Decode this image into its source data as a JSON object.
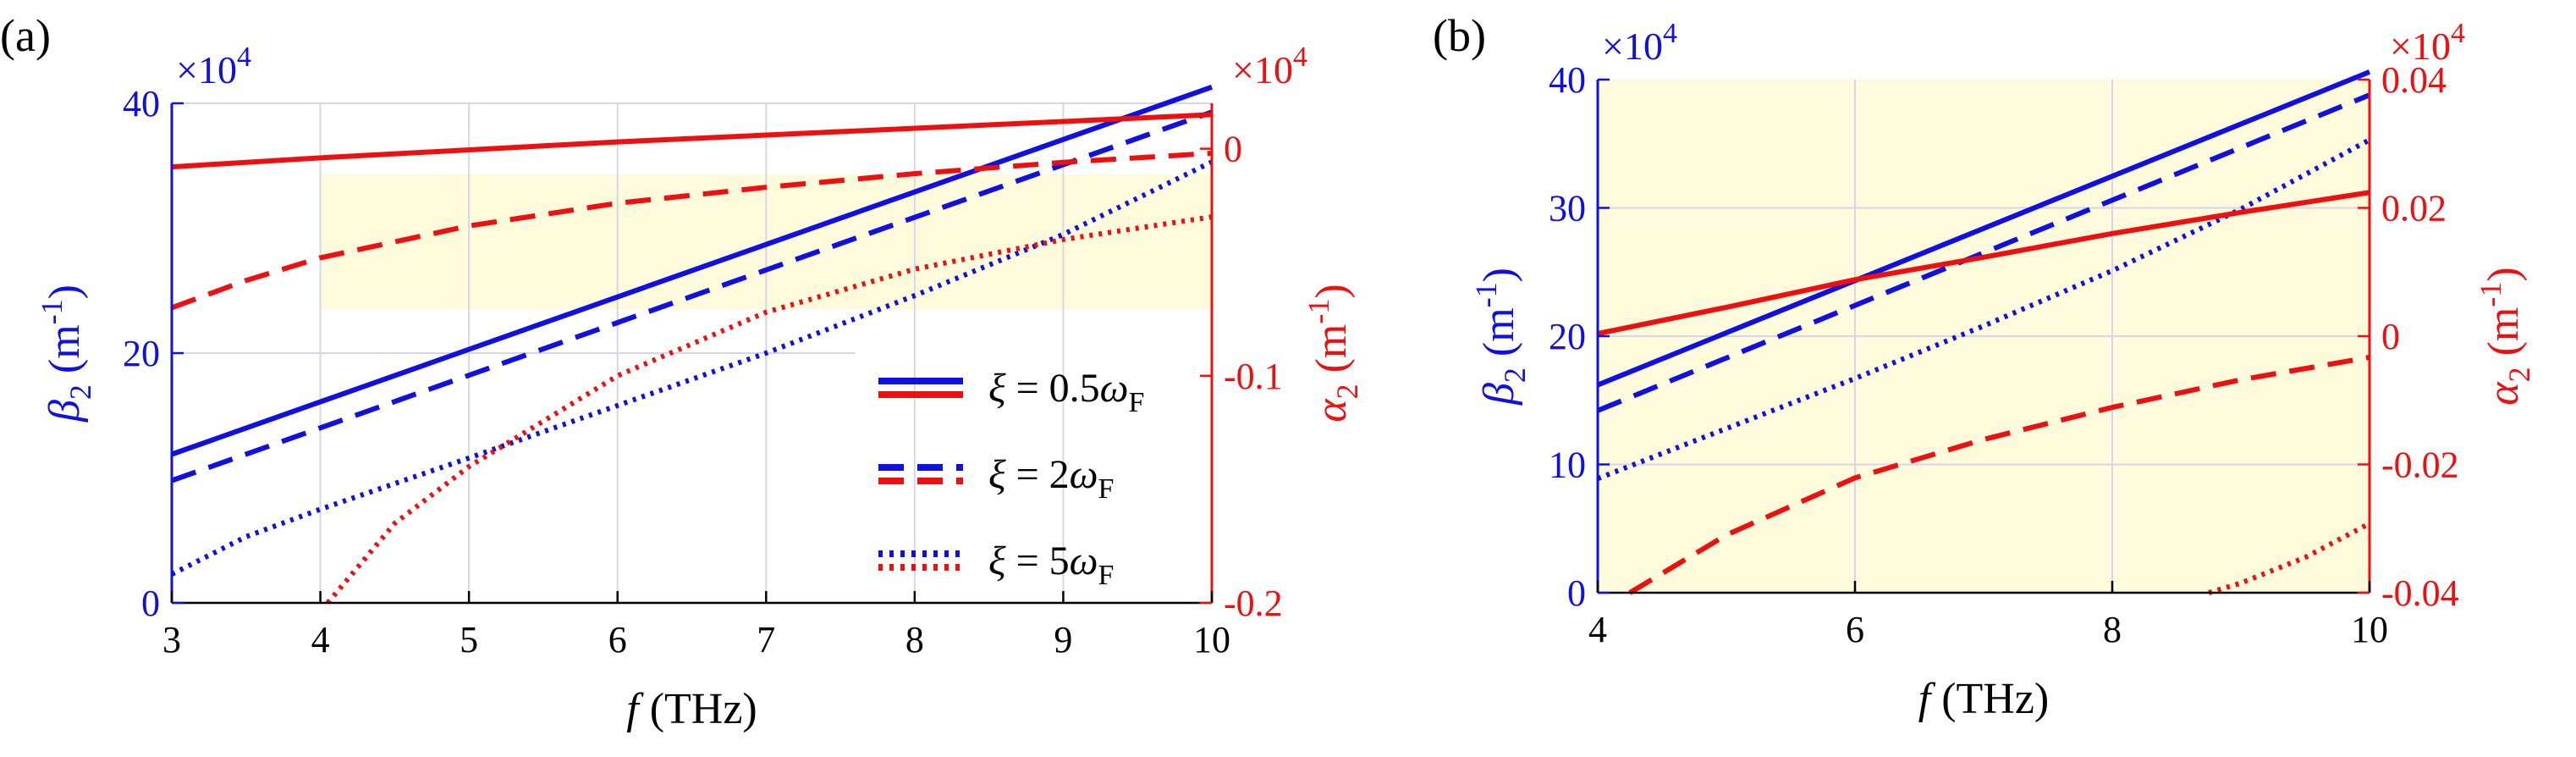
{
  "colors": {
    "blue": "#1010e0",
    "red": "#ee1010",
    "grid": "#d6d6e6",
    "shade": "#fdfbdc",
    "axis": "#000000"
  },
  "legend": {
    "xi_symbol": "ξ",
    "entries": [
      {
        "eq": "= 0.5",
        "omega": "ω",
        "sub": "F",
        "style": "solid"
      },
      {
        "eq": "= 2",
        "omega": "ω",
        "sub": "F",
        "style": "dashed"
      },
      {
        "eq": "= 5",
        "omega": "ω",
        "sub": "F",
        "style": "dotted"
      }
    ]
  },
  "chart_data": [
    {
      "type": "line",
      "panel_label": "(a)",
      "xlabel_var": "f",
      "xlabel_unit": "(THz)",
      "ylabel_left": {
        "sym": "β",
        "sub": "2",
        "unit": " (m",
        "sup": "-1",
        "close": ")"
      },
      "ylabel_right": {
        "sym": "α",
        "sub": "2",
        "unit": " (m",
        "sup": "-1",
        "close": ")"
      },
      "multiplier_left": {
        "base": "×10",
        "exp": "4"
      },
      "multiplier_right": {
        "base": "×10",
        "exp": "4"
      },
      "xlim": [
        3,
        10
      ],
      "ylim_left": [
        0,
        40
      ],
      "ylim_right": [
        -0.2,
        0.02
      ],
      "x_ticks": [
        3,
        4,
        5,
        6,
        7,
        8,
        9,
        10
      ],
      "x_tick_labels": [
        "3",
        "4",
        "5",
        "6",
        "7",
        "8",
        "9",
        "10"
      ],
      "y_left_ticks": [
        0,
        20,
        40
      ],
      "y_left_tick_labels": [
        "0",
        "20",
        "40"
      ],
      "y_right_ticks": [
        -0.2,
        -0.1,
        0
      ],
      "y_right_tick_labels": [
        "-0.2",
        "-0.1",
        "0"
      ],
      "grid_x": [
        4,
        5,
        6,
        7,
        8,
        9
      ],
      "grid_y_left": [
        {
          "y": 40,
          "x0": 3,
          "x1": 10
        },
        {
          "y": 20,
          "x0": 3,
          "x1": 7.6
        }
      ],
      "shade_region": {
        "x": [
          4,
          10
        ],
        "y_left": [
          23.5,
          34.3
        ]
      },
      "series": [
        {
          "name": "β2 ξ=0.5ωF",
          "axis": "left",
          "color": "blue",
          "style": "solid",
          "x": [
            3,
            10
          ],
          "y": [
            11.9,
            41.3
          ]
        },
        {
          "name": "β2 ξ=2ωF",
          "axis": "left",
          "color": "blue",
          "style": "dashed",
          "x": [
            3,
            10
          ],
          "y": [
            9.8,
            39.3
          ]
        },
        {
          "name": "β2 ξ=5ωF",
          "axis": "left",
          "color": "blue",
          "style": "dotted",
          "x": [
            3,
            3.5,
            4,
            5,
            6,
            7,
            8,
            9,
            10
          ],
          "y": [
            2.3,
            5.3,
            7.5,
            11.6,
            15.8,
            20.0,
            24.6,
            29.5,
            35.3
          ]
        },
        {
          "name": "α2 ξ=0.5ωF",
          "axis": "right",
          "color": "red",
          "style": "solid",
          "x": [
            3,
            4,
            5,
            6,
            7,
            8,
            9,
            10
          ],
          "y": [
            -0.008,
            -0.004,
            -0.0005,
            0.003,
            0.006,
            0.009,
            0.012,
            0.015
          ]
        },
        {
          "name": "α2 ξ=2ωF",
          "axis": "right",
          "color": "red",
          "style": "dashed",
          "x": [
            3,
            3.5,
            4,
            5,
            6,
            7,
            8,
            9,
            10
          ],
          "y": [
            -0.07,
            -0.058,
            -0.048,
            -0.034,
            -0.024,
            -0.017,
            -0.011,
            -0.006,
            -0.002
          ]
        },
        {
          "name": "α2 ξ=5ωF",
          "axis": "right",
          "color": "red",
          "style": "dotted",
          "x": [
            4.05,
            4.5,
            5,
            5.5,
            6,
            7,
            8,
            9,
            10
          ],
          "y": [
            -0.2,
            -0.165,
            -0.14,
            -0.12,
            -0.1,
            -0.072,
            -0.053,
            -0.04,
            -0.03
          ]
        }
      ]
    },
    {
      "type": "line",
      "panel_label": "(b)",
      "xlabel_var": "f",
      "xlabel_unit": "(THz)",
      "ylabel_left": {
        "sym": "β",
        "sub": "2",
        "unit": " (m",
        "sup": "-1",
        "close": ")"
      },
      "ylabel_right": {
        "sym": "α",
        "sub": "2",
        "unit": " (m",
        "sup": "-1",
        "close": ")"
      },
      "multiplier_left": {
        "base": "×10",
        "exp": "4"
      },
      "multiplier_right": {
        "base": "×10",
        "exp": "4"
      },
      "xlim": [
        4,
        10
      ],
      "ylim_left": [
        0,
        40
      ],
      "ylim_right": [
        -0.04,
        0.04
      ],
      "x_ticks": [
        4,
        6,
        8,
        10
      ],
      "x_tick_labels": [
        "4",
        "6",
        "8",
        "10"
      ],
      "y_left_ticks": [
        0,
        10,
        20,
        30,
        40
      ],
      "y_left_tick_labels": [
        "0",
        "10",
        "20",
        "30",
        "40"
      ],
      "y_right_ticks": [
        -0.04,
        -0.02,
        0,
        0.02,
        0.04
      ],
      "y_right_tick_labels": [
        "-0.04",
        "-0.02",
        "0",
        "0.02",
        "0.04"
      ],
      "grid_x": [
        6,
        8
      ],
      "grid_y_left": [
        {
          "y": 10,
          "x0": 4,
          "x1": 10
        },
        {
          "y": 20,
          "x0": 4,
          "x1": 10
        },
        {
          "y": 30,
          "x0": 4,
          "x1": 10
        }
      ],
      "shade_region": {
        "x": [
          4,
          10
        ],
        "y_left": [
          0,
          40
        ]
      },
      "series": [
        {
          "name": "β2 ξ=0.5ωF",
          "axis": "left",
          "color": "blue",
          "style": "solid",
          "x": [
            4,
            10
          ],
          "y": [
            16.2,
            40.6
          ]
        },
        {
          "name": "β2 ξ=2ωF",
          "axis": "left",
          "color": "blue",
          "style": "dashed",
          "x": [
            4,
            10
          ],
          "y": [
            14.2,
            38.8
          ]
        },
        {
          "name": "β2 ξ=5ωF",
          "axis": "left",
          "color": "blue",
          "style": "dotted",
          "x": [
            4,
            5,
            6,
            7,
            8,
            9,
            10
          ],
          "y": [
            8.9,
            12.8,
            16.7,
            20.8,
            25.1,
            29.9,
            35.3
          ]
        },
        {
          "name": "α2 ξ=0.5ωF",
          "axis": "right",
          "color": "red",
          "style": "solid",
          "x": [
            4,
            5,
            6,
            7,
            8,
            9,
            10
          ],
          "y": [
            0.0004,
            0.0045,
            0.0088,
            0.0123,
            0.016,
            0.0193,
            0.0224
          ]
        },
        {
          "name": "α2 ξ=2ωF",
          "axis": "right",
          "color": "red",
          "style": "dashed",
          "x": [
            4.25,
            5,
            6,
            7,
            8,
            9,
            10
          ],
          "y": [
            -0.04,
            -0.031,
            -0.0221,
            -0.0161,
            -0.0111,
            -0.0068,
            -0.0033
          ]
        },
        {
          "name": "α2 ξ=5ωF",
          "axis": "right",
          "color": "red",
          "style": "dotted",
          "x": [
            8.75,
            9,
            9.5,
            10
          ],
          "y": [
            -0.04,
            -0.0385,
            -0.0345,
            -0.0292
          ]
        }
      ]
    }
  ]
}
